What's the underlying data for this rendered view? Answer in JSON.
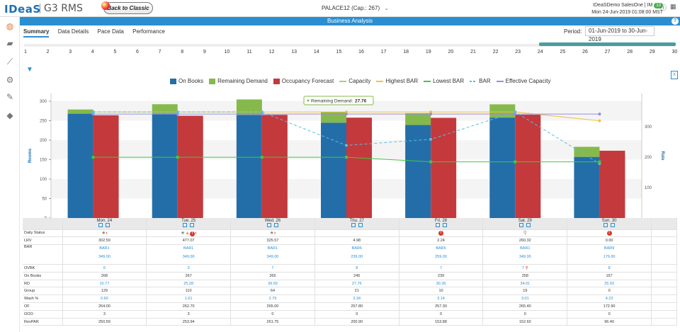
{
  "header": {
    "logo_text": "IDeaS",
    "product": "G3 RMS",
    "back_label": "Back to Classic",
    "property": "PALACE12 (Cap.: 267)",
    "property_chevron": "⌄",
    "user": "IDeaSDemo SalesOne | IM",
    "notification_count": "13",
    "datetime": "Mon 24-Jun-2019 01:08:00 MST"
  },
  "titlebar": {
    "title": "Business Analysis",
    "help": "?"
  },
  "tabs": [
    "Summary",
    "Data Details",
    "Pace Data",
    "Performance"
  ],
  "period": {
    "label": "Period:",
    "value": "01-Jun-2019 to 30-Jun-2019"
  },
  "ruler_days": [
    "1",
    "2",
    "3",
    "4",
    "5",
    "6",
    "7",
    "8",
    "9",
    "10",
    "11",
    "12",
    "13",
    "14",
    "15",
    "16",
    "17",
    "18",
    "19",
    "20",
    "21",
    "22",
    "23",
    "24",
    "25",
    "26",
    "27",
    "28",
    "29",
    "30"
  ],
  "legend": [
    {
      "label": "On Books",
      "color": "#236ea8",
      "kind": "bar"
    },
    {
      "label": "Remaining Demand",
      "color": "#86b94b",
      "kind": "bar"
    },
    {
      "label": "Occupancy Forecast",
      "color": "#c4393c",
      "kind": "bar"
    },
    {
      "label": "Capacity",
      "color": "#a8d080",
      "kind": "line"
    },
    {
      "label": "Highest BAR",
      "color": "#f2c23b",
      "kind": "line"
    },
    {
      "label": "Lowest BAR",
      "color": "#3fc93f",
      "kind": "line"
    },
    {
      "label": "BAR",
      "color": "#5bbde0",
      "kind": "dash"
    },
    {
      "label": "Effective Capacity",
      "color": "#9a8ce0",
      "kind": "line"
    }
  ],
  "chart_data": {
    "type": "bar",
    "categories": [
      "Mon. 24",
      "Tue. 25",
      "Wed. 26",
      "Thu. 27",
      "Fri. 28",
      "Sat. 29",
      "Sun. 30"
    ],
    "series": [
      {
        "name": "On Books",
        "values": [
          268,
          267,
          265,
          245,
          239,
          258,
          157
        ]
      },
      {
        "name": "Remaining Demand",
        "values": [
          10.77,
          25.28,
          39.59,
          27.76,
          30.36,
          34.01,
          25.93
        ]
      },
      {
        "name": "Occupancy Forecast",
        "values": [
          264,
          262.7,
          265,
          257.8,
          257.3,
          265.4,
          172.9
        ]
      },
      {
        "name": "Capacity",
        "values": [
          267,
          267,
          267,
          267,
          267,
          267,
          267
        ]
      },
      {
        "name": "Highest BAR",
        "values": [
          349,
          349,
          349,
          349,
          349,
          349,
          320
        ]
      },
      {
        "name": "Lowest BAR",
        "values": [
          200,
          200,
          200,
          200,
          185,
          185,
          185
        ]
      },
      {
        "name": "BAR",
        "values": [
          349,
          349,
          349,
          239,
          259,
          349,
          179
        ]
      },
      {
        "name": "Effective Capacity",
        "values": [
          267,
          267,
          267,
          267,
          267,
          267,
          267
        ]
      }
    ],
    "y_left": {
      "label": "Rooms",
      "ticks": [
        "0",
        "50",
        "100",
        "150",
        "200",
        "250",
        "300"
      ],
      "lim": [
        0,
        320
      ]
    },
    "y_right": {
      "label": "Rate",
      "ticks": [
        "100",
        "200",
        "300"
      ],
      "lim": [
        0,
        410
      ]
    },
    "tooltip": {
      "label": "Remaining Demand:",
      "value": "27.76",
      "category": "Thu. 27"
    }
  },
  "table": {
    "days": [
      "Mon. 24",
      "Tue. 25",
      "Wed. 26",
      "Thu. 27",
      "Fri. 28",
      "Sat. 29",
      "Sun. 30"
    ],
    "rows": {
      "daily_status": "Daily Status",
      "lrv": {
        "label": "LRV",
        "values": [
          "302.59",
          "477.07",
          "325.57",
          "4.98",
          "2.24",
          "260.32",
          "0.00"
        ]
      },
      "bar": {
        "label": "BAR",
        "codes": [
          "BAR1",
          "BAR1",
          "BAR1",
          "BAR6",
          "BAR5",
          "BAR1",
          "BAR9"
        ],
        "rates": [
          "349.00",
          "349.00",
          "349.00",
          "239.00",
          "259.00",
          "349.00",
          "179.00"
        ]
      },
      "ovbk": {
        "label": "OVBK",
        "values": [
          "0",
          "3",
          "7",
          "8",
          "7",
          "7",
          "8"
        ]
      },
      "on_books": {
        "label": "On Books",
        "values": [
          "268",
          "267",
          "265",
          "245",
          "239",
          "258",
          "157"
        ]
      },
      "rd": {
        "label": "RD",
        "values": [
          "10.77",
          "25.28",
          "39.59",
          "27.76",
          "30.36",
          "34.01",
          "25.93"
        ]
      },
      "group": {
        "label": "Group",
        "values": [
          "129",
          "110",
          "64",
          "21",
          "10",
          "19",
          "0"
        ]
      },
      "wash": {
        "label": "Wash %",
        "values": [
          "0.60",
          "1.61",
          "2.79",
          "3.34",
          "3.14",
          "3.01",
          "4.23"
        ]
      },
      "of": {
        "label": "OF",
        "values": [
          "264.00",
          "262.70",
          "265.00",
          "257.80",
          "257.30",
          "265.40",
          "172.90"
        ]
      },
      "ooo": {
        "label": "OOO",
        "values": [
          "3",
          "3",
          "0",
          "0",
          "0",
          "0",
          "0"
        ]
      },
      "revpar": {
        "label": "RevPAR",
        "values": [
          "250.59",
          "253.94",
          "261.75",
          "200.90",
          "153.88",
          "152.60",
          "96.40"
        ]
      }
    }
  }
}
